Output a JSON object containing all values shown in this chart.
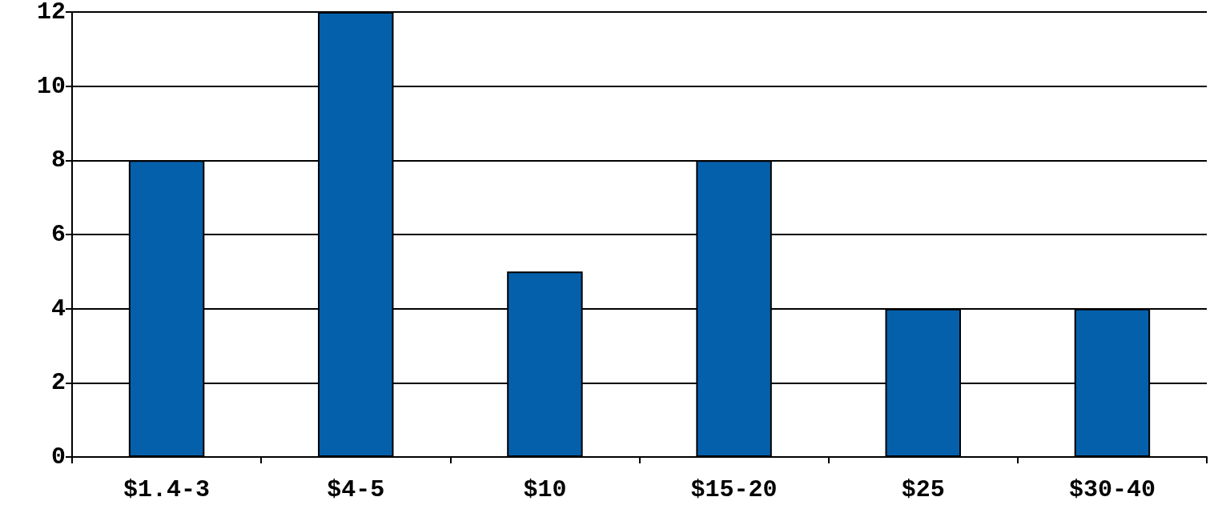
{
  "chart_data": {
    "type": "bar",
    "categories": [
      "$1.4-3",
      "$4-5",
      "$10",
      "$15-20",
      "$25",
      "$30-40"
    ],
    "values": [
      8,
      12,
      5,
      8,
      4,
      4
    ],
    "color": "#0560ab",
    "ylim": [
      0,
      12
    ],
    "yticks": [
      0,
      2,
      4,
      6,
      8,
      10,
      12
    ],
    "grid": "y"
  }
}
